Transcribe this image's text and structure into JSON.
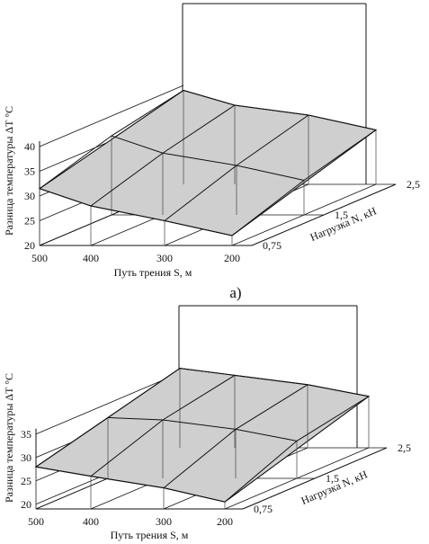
{
  "chart_data": [
    {
      "type": "surface",
      "panel_label": "a)",
      "xlabel": "Путь трения S, м",
      "ylabel": "Разница температуры ΔT °C",
      "zlabel": "Нагрузка N, кН",
      "x_ticks": [
        "500",
        "400",
        "300",
        "200"
      ],
      "y_ticks": [
        "20",
        "25",
        "30",
        "35",
        "40"
      ],
      "z_ticks": [
        "0,75",
        "1,5",
        "2,5"
      ],
      "x": [
        500,
        400,
        300,
        200
      ],
      "load": [
        0.75,
        1.5,
        2.5
      ],
      "ylim": [
        20,
        40
      ],
      "series": [
        {
          "name": "0,75",
          "values": [
            31.5,
            28,
            25,
            22
          ]
        },
        {
          "name": "1,5",
          "values": [
            36,
            32.5,
            30,
            27
          ]
        },
        {
          "name": "2,5",
          "values": [
            39,
            36,
            34,
            31
          ]
        }
      ]
    },
    {
      "type": "surface",
      "panel_label": "",
      "xlabel": "Путь трения S, м",
      "ylabel": "Разница температуры ΔT °C",
      "zlabel": "Нагрузка N, кН",
      "x_ticks": [
        "500",
        "400",
        "300",
        "200"
      ],
      "y_ticks": [
        "20",
        "25",
        "30",
        "35"
      ],
      "z_ticks": [
        "0,75",
        "1,5",
        "2,5"
      ],
      "x": [
        500,
        400,
        300,
        200
      ],
      "load": [
        0.75,
        1.5,
        2.5
      ],
      "ylim": [
        19,
        38
      ],
      "series": [
        {
          "name": "0,75",
          "values": [
            28,
            26,
            23.5,
            20.5
          ]
        },
        {
          "name": "1,5",
          "values": [
            32,
            31.5,
            29.5,
            27
          ]
        },
        {
          "name": "2,5",
          "values": [
            36,
            34.5,
            32.5,
            30
          ]
        }
      ]
    }
  ]
}
